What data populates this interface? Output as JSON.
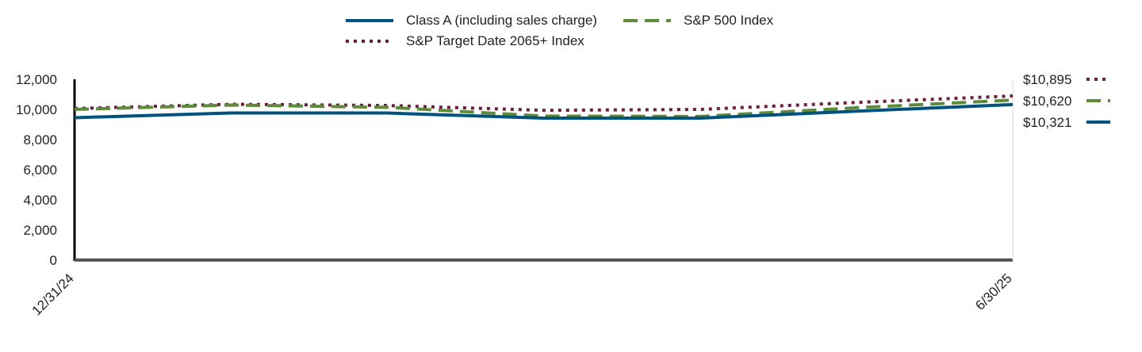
{
  "chart_data": {
    "type": "line",
    "x": [
      "12/31/24",
      "1/31/25",
      "2/28/25",
      "3/31/25",
      "4/30/25",
      "5/31/25",
      "6/30/25"
    ],
    "x_tick_labels": [
      "12/31/24",
      "6/30/25"
    ],
    "ylim": [
      0,
      12000
    ],
    "y_ticks": [
      0,
      2000,
      4000,
      6000,
      8000,
      10000,
      12000
    ],
    "y_tick_labels": [
      "0",
      "2,000",
      "4,000",
      "6,000",
      "8,000",
      "10,000",
      "12,000"
    ],
    "title": "",
    "xlabel": "",
    "ylabel": "",
    "grid": false,
    "legend_position": "top-center",
    "series": [
      {
        "name": "Class A (including sales charge)",
        "color": "#00527F",
        "style": "solid",
        "values": [
          9450,
          9760,
          9760,
          9420,
          9420,
          9880,
          10321
        ],
        "end_label": "$10,321"
      },
      {
        "name": "S&P 500 Index",
        "color": "#5E8B3A",
        "style": "dashed",
        "values": [
          10000,
          10290,
          10140,
          9560,
          9530,
          10110,
          10620
        ],
        "end_label": "$10,620"
      },
      {
        "name": "S&P Target Date 2065+ Index",
        "color": "#6B1F3F",
        "style": "dotted",
        "values": [
          10060,
          10340,
          10260,
          9940,
          10000,
          10460,
          10895
        ],
        "end_label": "$10,895"
      }
    ]
  }
}
